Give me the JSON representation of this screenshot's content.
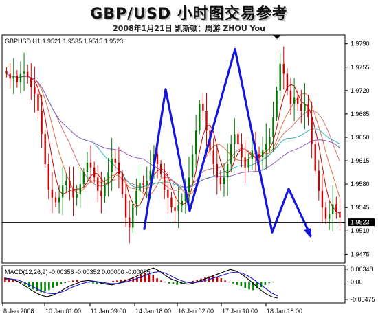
{
  "header": {
    "title": "GBP/USD 小时图交易参考",
    "subtitle": "2008年1月21日   凯斯顿：周游 ZHOU You"
  },
  "chart_data": {
    "type": "candlestick",
    "symbol_header": "GBPUSD,H1  1.9521 1.9535 1.9515 1.9523",
    "y_ticks": [
      "1.9790",
      "1.9755",
      "1.9720",
      "1.9685",
      "1.9650",
      "1.9615",
      "1.9580",
      "1.9545",
      "1.9510",
      "1.9475"
    ],
    "ylim": [
      1.9463,
      1.9802
    ],
    "current_price": "1.9523",
    "current_price_value": 1.9523,
    "x_ticks": [
      "8 Jan 2008",
      "10 Jan 01:00",
      "11 Jan 09:00",
      "14 Jan 18:00",
      "16 Jan 02:00",
      "17 Jan 10:00",
      "18 Jan 18:00"
    ],
    "price_path": [
      1.9745,
      1.9738,
      1.9742,
      1.9732,
      1.9745,
      1.9748,
      1.974,
      1.9725,
      1.9715,
      1.969,
      1.9655,
      1.961,
      1.9572,
      1.956,
      1.9553,
      1.956,
      1.9578,
      1.9585,
      1.9575,
      1.956,
      1.9565,
      1.958,
      1.9598,
      1.9612,
      1.9605,
      1.959,
      1.957,
      1.9562,
      1.958,
      1.9598,
      1.9618,
      1.9612,
      1.9595,
      1.9565,
      1.953,
      1.9515,
      1.955,
      1.957,
      1.9582,
      1.9578,
      1.9585,
      1.96,
      1.9625,
      1.961,
      1.9595,
      1.9572,
      1.956,
      1.9545,
      1.954,
      1.9548,
      1.9555,
      1.9568,
      1.959,
      1.9625,
      1.966,
      1.97,
      1.969,
      1.966,
      1.963,
      1.961,
      1.959,
      1.958,
      1.959,
      1.961,
      1.964,
      1.9655,
      1.964,
      1.962,
      1.9605,
      1.9618,
      1.963,
      1.9625,
      1.962,
      1.963,
      1.964,
      1.965,
      1.968,
      1.972,
      1.976,
      1.9745,
      1.972,
      1.97,
      1.971,
      1.97,
      1.969,
      1.97,
      1.968,
      1.964,
      1.96,
      1.957,
      1.9545,
      1.9528,
      1.9535,
      1.955,
      1.9538,
      1.953
    ],
    "moving_averages": [
      {
        "color": "#c80000",
        "period": 5
      },
      {
        "color": "#e07040",
        "period": 9
      },
      {
        "color": "#d07070",
        "period": 15
      },
      {
        "color": "#30b8b8",
        "period": 26
      },
      {
        "color": "#9060c0",
        "period": 40
      }
    ],
    "forecast_path": [
      {
        "x": "14 Jan 18:00",
        "y": 1.9513
      },
      {
        "x": "",
        "y": 1.9722
      },
      {
        "x": "",
        "y": 1.954
      },
      {
        "x": "",
        "y": 1.9782
      },
      {
        "x": "",
        "y": 1.9508
      },
      {
        "x": "",
        "y": 1.9573
      },
      {
        "x": "",
        "y": 1.9503
      }
    ],
    "colors": {
      "up": "#007700",
      "down": "#cc0000",
      "forecast": "#1515dd",
      "grid": "#000000"
    },
    "macd": {
      "label": "MACD(12,26,9) -0.00356 -0.00352 0.00000 -0.00005",
      "y_ticks": [
        "0.00348",
        "0.00",
        "-0.00475"
      ],
      "ylim": [
        -0.0055,
        0.0042
      ],
      "histogram": [
        0.0012,
        0.001,
        0.0006,
        0.0003,
        -0.0002,
        -0.0008,
        -0.0014,
        -0.002,
        -0.0024,
        -0.0028,
        -0.0026,
        -0.0022,
        -0.0016,
        -0.001,
        -0.0005,
        -0.0003,
        0.0002,
        0.0004,
        0.0005,
        0.0003,
        0.0001,
        -0.0002,
        -0.0004,
        -0.0006,
        -0.0005,
        -0.0003,
        0.0,
        0.0003,
        0.0004,
        0.0006,
        0.0007,
        0.0008,
        0.001,
        0.0014,
        0.002,
        0.0024,
        0.0022,
        0.0018,
        0.001,
        0.0004,
        0.0,
        -0.0004,
        -0.0006,
        -0.0008,
        -0.0006,
        -0.0003,
        0.0,
        0.0003,
        0.0006,
        0.0009,
        0.0012,
        0.0015,
        0.0018,
        0.0014,
        0.001,
        0.0004,
        0.0,
        -0.0004,
        -0.0008,
        -0.0012,
        -0.0016,
        -0.002,
        -0.0022,
        -0.0018,
        -0.0014,
        -0.0008,
        -0.0003,
        0.0
      ],
      "macd_line": [
        0.001,
        0.0008,
        0.0002,
        -0.0008,
        -0.0018,
        -0.0028,
        -0.0036,
        -0.004,
        -0.0036,
        -0.0028,
        -0.0018,
        -0.001,
        -0.0004,
        0.0002,
        0.0004,
        0.0002,
        -0.0002,
        -0.0006,
        -0.0008,
        -0.0004,
        0.0002,
        0.0008,
        0.0014,
        0.0022,
        0.0032,
        0.0038,
        0.003,
        0.0018,
        0.0008,
        0.0002,
        -0.0004,
        -0.0006,
        -0.0002,
        0.0004,
        0.001,
        0.0016,
        0.0022,
        0.0028,
        0.0034,
        0.003,
        0.002,
        0.0008,
        -0.0006,
        -0.002,
        -0.0032,
        -0.004,
        -0.0044
      ],
      "signal_line": [
        0.0008,
        0.0008,
        0.0006,
        0.0,
        -0.0008,
        -0.0016,
        -0.0024,
        -0.003,
        -0.0032,
        -0.003,
        -0.0024,
        -0.0016,
        -0.001,
        -0.0004,
        0.0,
        0.0002,
        0.0,
        -0.0003,
        -0.0005,
        -0.0004,
        -0.0001,
        0.0003,
        0.0008,
        0.0014,
        0.002,
        0.0026,
        0.0028,
        0.0024,
        0.0016,
        0.0008,
        0.0002,
        -0.0002,
        -0.0002,
        0.0001,
        0.0005,
        0.001,
        0.0015,
        0.002,
        0.0025,
        0.0027,
        0.0024,
        0.0016,
        0.0006,
        -0.0006,
        -0.0018,
        -0.003,
        -0.0038
      ]
    }
  }
}
